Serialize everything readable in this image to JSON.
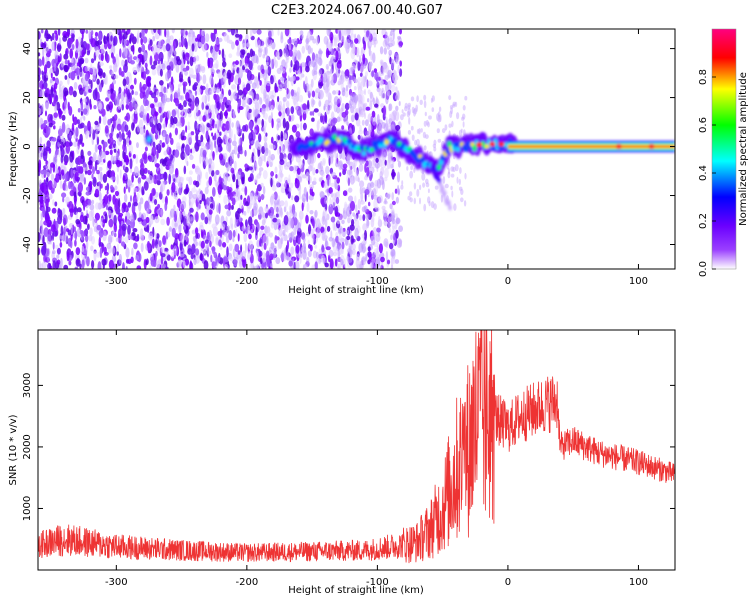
{
  "title": "C2E3.2024.067.00.40.G07",
  "chart_data": [
    {
      "type": "heatmap",
      "xlabel": "Height of straight line (km)",
      "ylabel": "Frequency (Hz)",
      "xlim": [
        -360,
        128
      ],
      "ylim": [
        -50,
        48
      ],
      "xticks": [
        "-300",
        "-200",
        "-100",
        "0",
        "100"
      ],
      "yticks": [
        "-40",
        "-20",
        "0",
        "20",
        "40"
      ],
      "colorbar": {
        "label": "Normalized spectral amplitude",
        "range": [
          0,
          1
        ],
        "ticks": [
          "0.0",
          "0.2",
          "0.4",
          "0.6",
          "0.8"
        ],
        "colormap": [
          "#ffffff",
          "#7b00ff",
          "#0000ff",
          "#00ffff",
          "#00ff00",
          "#ffff00",
          "#ff0000",
          "#ff00ff"
        ]
      },
      "ridge": [
        {
          "x": -275,
          "y": 3
        },
        {
          "x": -160,
          "y": 0
        },
        {
          "x": -130,
          "y": 3
        },
        {
          "x": -110,
          "y": -2
        },
        {
          "x": -90,
          "y": 3
        },
        {
          "x": -70,
          "y": -4
        },
        {
          "x": -55,
          "y": -10
        },
        {
          "x": -45,
          "y": 0
        },
        {
          "x": -30,
          "y": 0
        },
        {
          "x": -20,
          "y": 1
        },
        {
          "x": 0,
          "y": 1
        },
        {
          "x": 50,
          "y": 0
        },
        {
          "x": 128,
          "y": 0
        }
      ]
    },
    {
      "type": "line",
      "xlabel": "Height of straight line (km)",
      "ylabel": "SNR (10 * v/v)",
      "xlim": [
        -360,
        128
      ],
      "ylim": [
        0,
        3900
      ],
      "xticks": [
        "-300",
        "-200",
        "-100",
        "0",
        "100"
      ],
      "yticks": [
        "1000",
        "2000",
        "3000"
      ],
      "color": "#ee3333",
      "series": [
        {
          "x": [
            -360,
            -340,
            -300,
            -250,
            -200,
            -150,
            -110,
            -90,
            -70,
            -60,
            -50,
            -40,
            -30,
            -25,
            -20,
            -15,
            -10,
            0,
            10,
            20,
            30,
            38,
            40,
            50,
            70,
            100,
            128
          ],
          "y": [
            400,
            500,
            380,
            320,
            280,
            300,
            320,
            380,
            450,
            650,
            1000,
            1600,
            2000,
            2400,
            2500,
            2600,
            2500,
            2300,
            2500,
            2600,
            2700,
            2750,
            2000,
            2100,
            1900,
            1750,
            1550
          ]
        }
      ]
    }
  ]
}
